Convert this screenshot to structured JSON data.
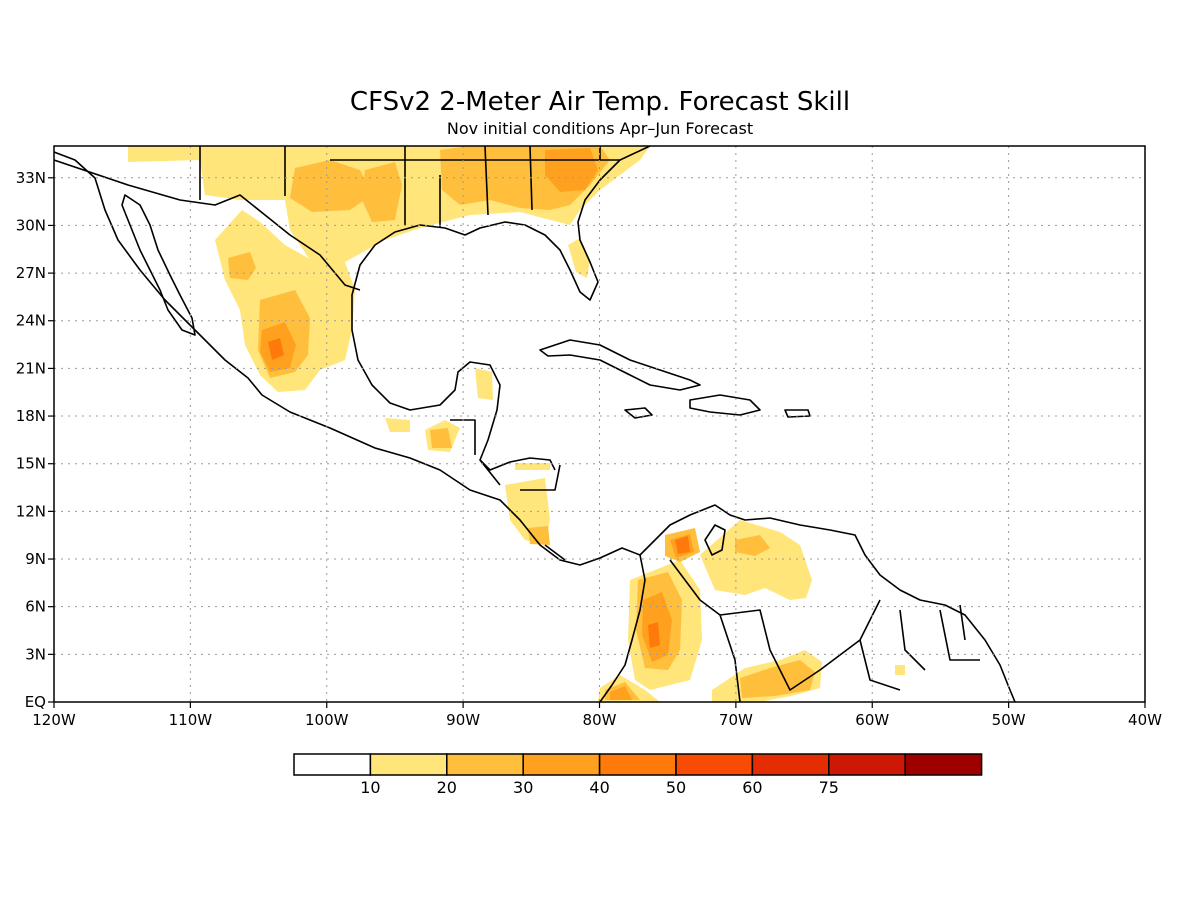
{
  "map": {
    "title": "CFSv2 2-Meter Air Temp. Forecast Skill",
    "subtitle": "Nov initial conditions  Apr–Jun Forecast",
    "lon_range": [
      -120,
      -40
    ],
    "lat_range": [
      0,
      35
    ],
    "lon_ticks": [
      {
        "value": -120,
        "label": "120W"
      },
      {
        "value": -110,
        "label": "110W"
      },
      {
        "value": -100,
        "label": "100W"
      },
      {
        "value": -90,
        "label": "90W"
      },
      {
        "value": -80,
        "label": "80W"
      },
      {
        "value": -70,
        "label": "70W"
      },
      {
        "value": -60,
        "label": "60W"
      },
      {
        "value": -50,
        "label": "50W"
      },
      {
        "value": -40,
        "label": "40W"
      }
    ],
    "lat_ticks": [
      {
        "value": 0,
        "label": "EQ"
      },
      {
        "value": 3,
        "label": "3N"
      },
      {
        "value": 6,
        "label": "6N"
      },
      {
        "value": 9,
        "label": "9N"
      },
      {
        "value": 12,
        "label": "12N"
      },
      {
        "value": 15,
        "label": "15N"
      },
      {
        "value": 18,
        "label": "18N"
      },
      {
        "value": 21,
        "label": "21N"
      },
      {
        "value": 24,
        "label": "24N"
      },
      {
        "value": 27,
        "label": "27N"
      },
      {
        "value": 30,
        "label": "30N"
      },
      {
        "value": 33,
        "label": "33N"
      }
    ],
    "grid": true,
    "colors": {
      "lvl10": "#FFE57A",
      "lvl20": "#FFBF3C",
      "lvl30": "#FFA11E",
      "lvl40": "#FF7A0A",
      "lvl50": "#F84C05",
      "coast": "#000000"
    }
  },
  "colorbar": {
    "boxes": [
      "#FFFFFF",
      "#FFE57A",
      "#FFBF3C",
      "#FFA11E",
      "#FF7A0A",
      "#F84C05",
      "#E52D04",
      "#CC1804",
      "#9E0000"
    ],
    "labels": [
      "10",
      "20",
      "30",
      "40",
      "50",
      "60",
      "75"
    ]
  }
}
